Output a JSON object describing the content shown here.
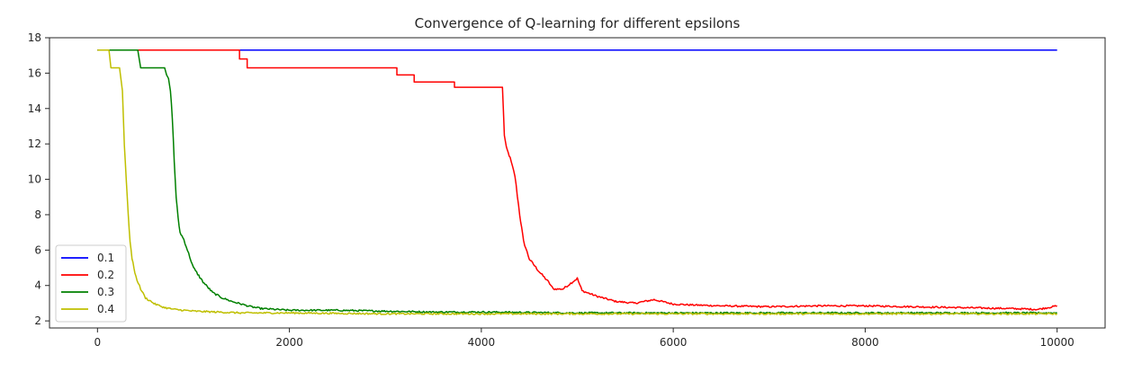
{
  "chart_data": {
    "type": "line",
    "title": "Convergence of Q-learning for different epsilons",
    "xlabel": "",
    "ylabel": "",
    "xlim": [
      -500,
      10500
    ],
    "ylim": [
      1.6,
      18
    ],
    "x_ticks": [
      0,
      2000,
      4000,
      6000,
      8000,
      10000
    ],
    "y_ticks": [
      2,
      4,
      6,
      8,
      10,
      12,
      14,
      16,
      18
    ],
    "grid": false,
    "legend": {
      "placement": "lower-left",
      "entries": [
        "0.1",
        "0.2",
        "0.3",
        "0.4"
      ]
    },
    "series": [
      {
        "name": "0.1",
        "color": "#0000ff",
        "x": [
          0,
          10000
        ],
        "y": [
          17.3,
          17.3
        ]
      },
      {
        "name": "0.2",
        "color": "#ff0000",
        "x": [
          0,
          1480,
          1480,
          1560,
          1560,
          1620,
          1620,
          3120,
          3120,
          3300,
          3300,
          3720,
          3720,
          4220,
          4240,
          4260,
          4300,
          4350,
          4400,
          4440,
          4500,
          4600,
          4700,
          4750,
          4850,
          5000,
          5050,
          5200,
          5400,
          5600,
          5800,
          6000,
          6200,
          6500,
          7000,
          7500,
          8000,
          8500,
          9000,
          9500,
          9800,
          10000
        ],
        "y": [
          17.3,
          17.3,
          16.8,
          16.8,
          16.3,
          16.3,
          16.3,
          16.3,
          15.9,
          15.9,
          15.5,
          15.5,
          15.2,
          15.2,
          12.5,
          11.8,
          11.2,
          10.2,
          8.0,
          6.5,
          5.5,
          4.8,
          4.2,
          3.8,
          3.8,
          4.4,
          3.7,
          3.4,
          3.1,
          3.0,
          3.2,
          2.95,
          2.9,
          2.85,
          2.8,
          2.85,
          2.85,
          2.8,
          2.75,
          2.7,
          2.65,
          2.85
        ]
      },
      {
        "name": "0.3",
        "color": "#008000",
        "x": [
          0,
          420,
          450,
          700,
          720,
          740,
          760,
          780,
          800,
          820,
          840,
          860,
          900,
          950,
          1000,
          1100,
          1200,
          1300,
          1400,
          1500,
          1600,
          1700,
          2000,
          2500,
          3000,
          3500,
          4000,
          5000,
          6000,
          7000,
          8000,
          9000,
          10000
        ],
        "y": [
          17.3,
          17.3,
          16.3,
          16.3,
          15.9,
          15.7,
          15.0,
          13.5,
          11.0,
          9.0,
          7.8,
          7.0,
          6.6,
          5.8,
          5.0,
          4.2,
          3.6,
          3.3,
          3.1,
          2.95,
          2.8,
          2.7,
          2.6,
          2.6,
          2.55,
          2.5,
          2.5,
          2.45,
          2.45,
          2.45,
          2.45,
          2.45,
          2.45
        ]
      },
      {
        "name": "0.4",
        "color": "#bfbf00",
        "x": [
          0,
          120,
          140,
          230,
          260,
          280,
          300,
          320,
          340,
          360,
          400,
          450,
          500,
          600,
          700,
          800,
          1000,
          1500,
          2000,
          3000,
          4000,
          5000,
          6000,
          7000,
          8000,
          9000,
          10000
        ],
        "y": [
          17.3,
          17.3,
          16.3,
          16.3,
          15.0,
          12.0,
          10.0,
          8.0,
          6.5,
          5.5,
          4.5,
          3.8,
          3.3,
          2.95,
          2.75,
          2.65,
          2.55,
          2.45,
          2.45,
          2.4,
          2.4,
          2.4,
          2.4,
          2.4,
          2.4,
          2.4,
          2.4
        ]
      }
    ]
  }
}
